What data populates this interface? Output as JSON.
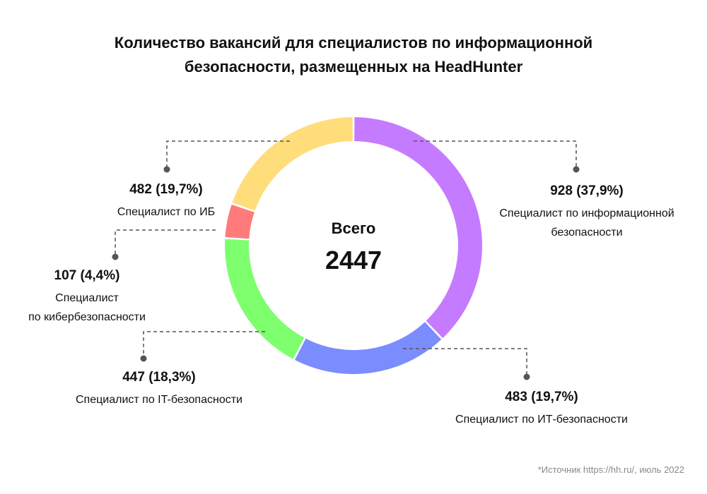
{
  "title": {
    "line1": "Количество вакансий для специалистов по информационной",
    "line2": "безопасности, размещенных на HeadHunter"
  },
  "center": {
    "label": "Всего",
    "value": "2447"
  },
  "source": "*Источник https://hh.ru/, июль 2022",
  "chart_data": {
    "type": "pie",
    "style": "donut",
    "title": "Количество вакансий для специалистов по информационной безопасности, размещенных на HeadHunter",
    "total": 2447,
    "slices": [
      {
        "id": "ib-info",
        "value": 928,
        "percent": "37,9%",
        "value_label": "928 (37,9%)",
        "label_lines": [
          "Специалист по информационной",
          "безопасности"
        ],
        "color": "#c57bff"
      },
      {
        "id": "it-cyr",
        "value": 483,
        "percent": "19,7%",
        "value_label": "483 (19,7%)",
        "label_lines": [
          "Специалист по ИТ-безопасности"
        ],
        "color": "#7b8cff"
      },
      {
        "id": "it-lat",
        "value": 447,
        "percent": "18,3%",
        "value_label": "447 (18,3%)",
        "label_lines": [
          "Специалист по IT-безопасности"
        ],
        "color": "#7dff6e"
      },
      {
        "id": "cyber",
        "value": 107,
        "percent": "4,4%",
        "value_label": "107 (4,4%)",
        "label_lines": [
          "Специалист",
          "по кибербезопасности"
        ],
        "color": "#ff7b7b"
      },
      {
        "id": "ib",
        "value": 482,
        "percent": "19,7%",
        "value_label": "482 (19,7%)",
        "label_lines": [
          "Специалист по ИБ"
        ],
        "color": "#ffdd7a"
      }
    ],
    "leader_color": "#555555"
  }
}
